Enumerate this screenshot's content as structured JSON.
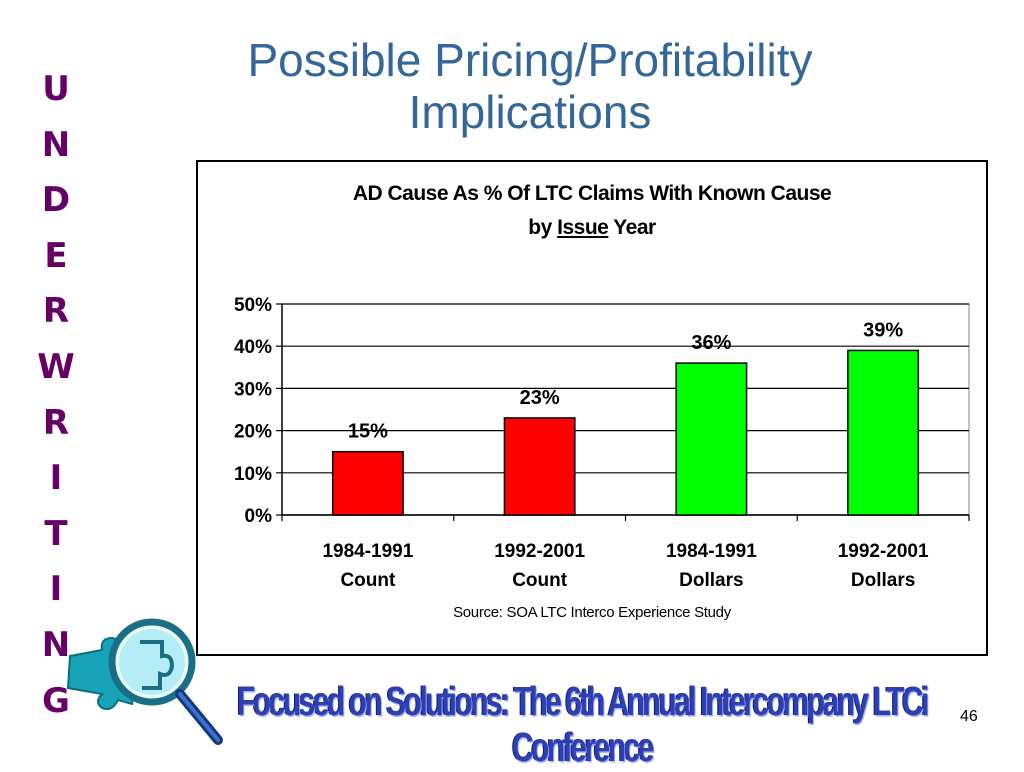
{
  "slide": {
    "title_line1": "Possible Pricing/Profitability",
    "title_line2": "Implications",
    "side_letters": [
      "U",
      "N",
      "D",
      "E",
      "R",
      "W",
      "R",
      "I",
      "T",
      "I",
      "N",
      "G"
    ],
    "footer": "Focused on Solutions:  The 6th Annual Intercompany LTCi Conference",
    "page_number": "46"
  },
  "chart_data": {
    "type": "bar",
    "title_line1": "AD Cause As % Of LTC Claims With Known Cause",
    "title_line2_prefix": "by ",
    "title_line2_emph": "Issue",
    "title_line2_suffix": " Year",
    "categories": [
      [
        "1984-1991",
        "Count"
      ],
      [
        "1992-2001",
        "Count"
      ],
      [
        "1984-1991",
        "Dollars"
      ],
      [
        "1992-2001",
        "Dollars"
      ]
    ],
    "values": [
      15,
      23,
      36,
      39
    ],
    "data_labels": [
      "15%",
      "23%",
      "36%",
      "39%"
    ],
    "bar_colors": [
      "#ff0000",
      "#ff0000",
      "#00ff00",
      "#00ff00"
    ],
    "y_ticks": [
      "0%",
      "10%",
      "20%",
      "30%",
      "40%",
      "50%"
    ],
    "ylim": [
      0,
      50
    ],
    "y_step": 10,
    "grid": true,
    "source": "Source: SOA LTC Interco Experience Study"
  }
}
